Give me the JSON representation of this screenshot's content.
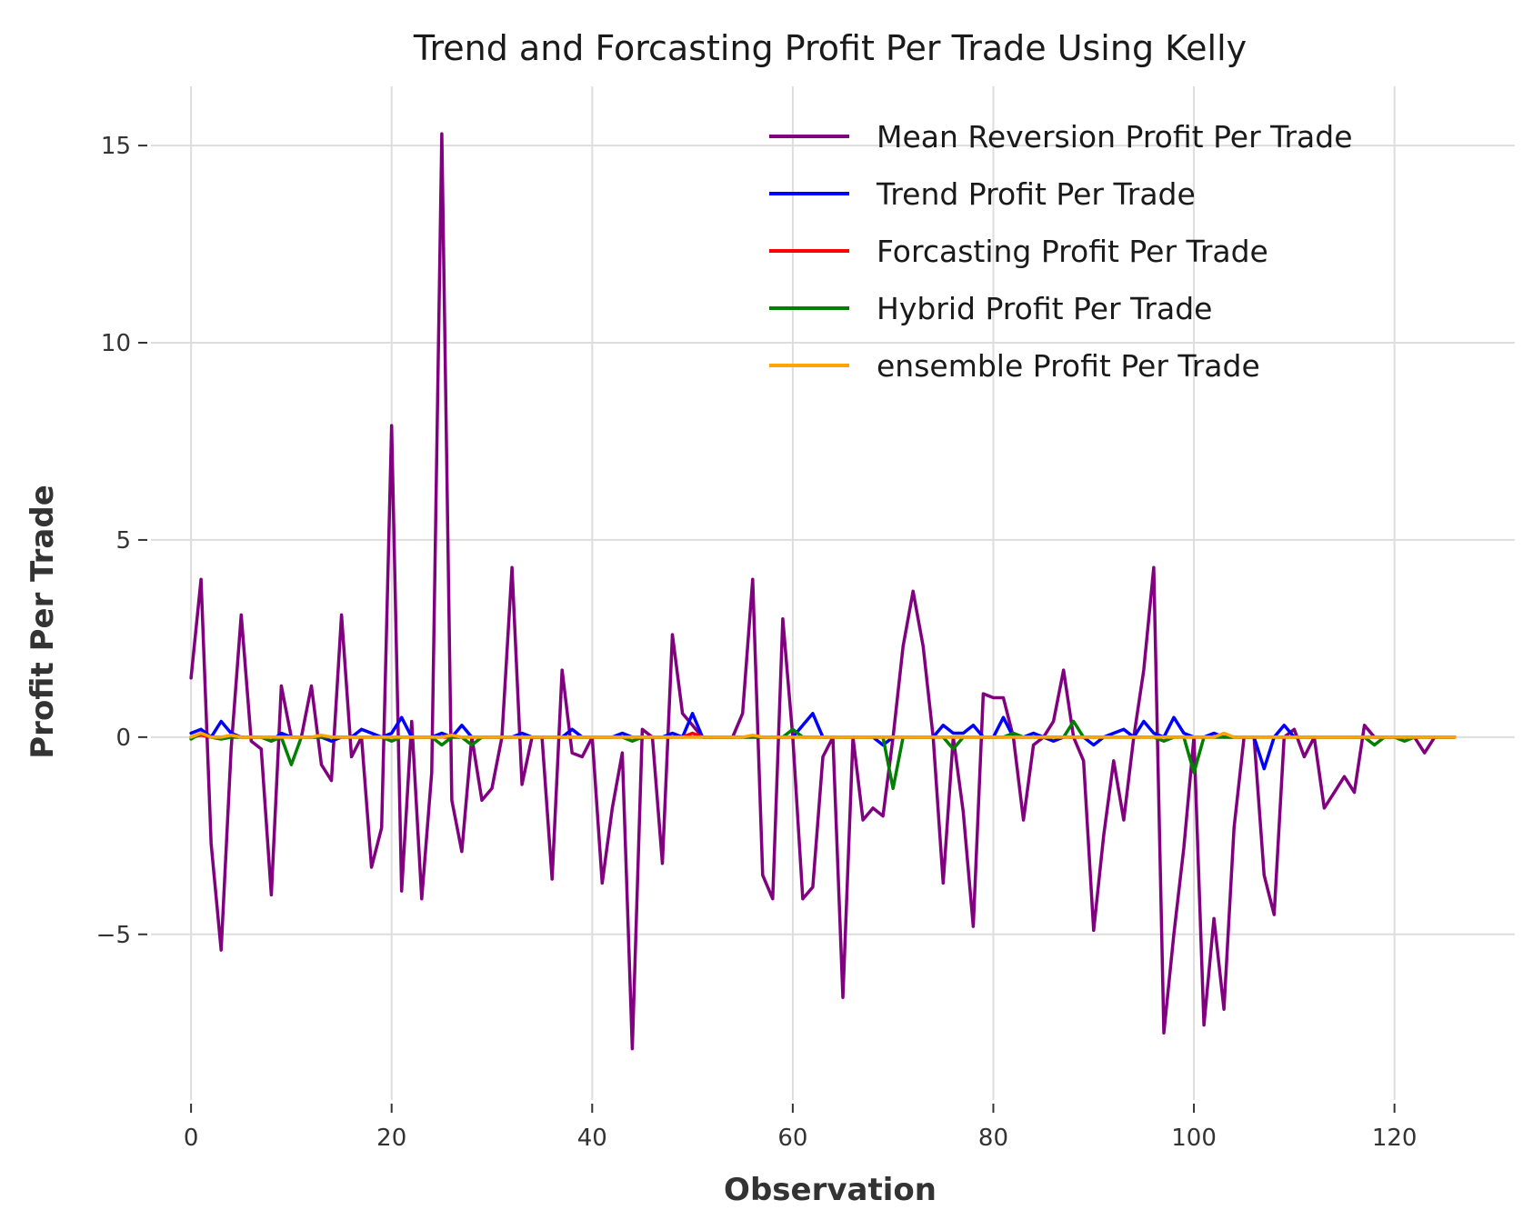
{
  "chart_data": {
    "type": "line",
    "title": "Trend and Forcasting Profit Per Trade Using Kelly",
    "xlabel": "Observation",
    "ylabel": "Profit Per Trade",
    "xlim": [
      -4,
      132
    ],
    "ylim": [
      -9.2,
      16.5
    ],
    "xticks": [
      0,
      20,
      40,
      60,
      80,
      100,
      120
    ],
    "yticks": [
      -5,
      0,
      5,
      10,
      15
    ],
    "ytick_labels": [
      "−5",
      "0",
      "5",
      "10",
      "15"
    ],
    "grid": true,
    "legend_position": "top-right",
    "series": [
      {
        "name": "Mean Reversion Profit Per Trade",
        "color": "#800080",
        "values": [
          1.5,
          4.0,
          -2.7,
          -5.4,
          -0.3,
          3.1,
          -0.1,
          -0.3,
          -4.0,
          1.3,
          0.0,
          0.0,
          1.3,
          -0.7,
          -1.1,
          3.1,
          -0.5,
          0.0,
          -3.3,
          -2.3,
          7.9,
          -3.9,
          0.4,
          -4.1,
          -0.9,
          15.3,
          -1.6,
          -2.9,
          0.0,
          -1.6,
          -1.3,
          0.0,
          4.3,
          -1.2,
          0.0,
          0.0,
          -3.6,
          1.7,
          -0.4,
          -0.5,
          0.0,
          -3.7,
          -1.8,
          -0.4,
          -7.9,
          0.2,
          0.0,
          -3.2,
          2.6,
          0.6,
          0.3,
          0.0,
          0.0,
          0.0,
          0.0,
          0.6,
          4.0,
          -3.5,
          -4.1,
          3.0,
          0.0,
          -4.1,
          -3.8,
          -0.5,
          0.0,
          -6.6,
          0.0,
          -2.1,
          -1.8,
          -2.0,
          0.0,
          2.3,
          3.7,
          2.3,
          0.0,
          -3.7,
          0.0,
          -1.9,
          -4.8,
          1.1,
          1.0,
          1.0,
          0.0,
          -2.1,
          -0.2,
          0.0,
          0.4,
          1.7,
          0.0,
          -0.6,
          -4.9,
          -2.5,
          -0.6,
          -2.1,
          0.0,
          1.7,
          4.3,
          -7.5,
          -5.0,
          -2.8,
          0.0,
          -7.3,
          -4.6,
          -6.9,
          -2.3,
          0.0,
          0.0,
          -3.5,
          -4.5,
          0.0,
          0.2,
          -0.5,
          0.0,
          -1.8,
          -1.4,
          -1.0,
          -1.4,
          0.3,
          0.0,
          0.0,
          0.0,
          0.0,
          0.0,
          -0.4,
          0.0,
          0.0,
          0.0
        ]
      },
      {
        "name": "Trend Profit Per Trade",
        "color": "#0000ff",
        "values": [
          0.1,
          0.2,
          0.0,
          0.4,
          0.1,
          0.0,
          0.0,
          0.0,
          -0.1,
          0.1,
          0.0,
          0.0,
          0.0,
          0.0,
          -0.1,
          0.0,
          0.0,
          0.2,
          0.1,
          0.0,
          0.1,
          0.5,
          0.0,
          0.0,
          0.0,
          0.1,
          0.0,
          0.3,
          0.0,
          0.0,
          0.0,
          0.0,
          0.0,
          0.1,
          0.0,
          0.0,
          0.0,
          0.0,
          0.2,
          0.0,
          0.0,
          0.0,
          0.0,
          0.1,
          0.0,
          0.0,
          0.0,
          0.0,
          0.1,
          0.0,
          0.6,
          0.0,
          0.0,
          0.0,
          0.0,
          0.0,
          0.0,
          0.0,
          0.0,
          0.0,
          0.0,
          0.3,
          0.6,
          0.0,
          0.0,
          0.0,
          0.0,
          0.0,
          0.0,
          -0.2,
          0.0,
          0.0,
          0.0,
          0.0,
          0.0,
          0.3,
          0.1,
          0.1,
          0.3,
          0.0,
          0.0,
          0.5,
          0.0,
          0.0,
          0.1,
          0.0,
          -0.1,
          0.0,
          0.0,
          0.0,
          -0.2,
          0.0,
          0.1,
          0.2,
          0.0,
          0.4,
          0.1,
          0.0,
          0.5,
          0.1,
          0.0,
          0.0,
          0.1,
          0.0,
          0.0,
          0.0,
          0.0,
          -0.8,
          0.0,
          0.3,
          0.0,
          0.0,
          0.0,
          0.0,
          0.0,
          0.0,
          0.0,
          0.0,
          0.0,
          0.0,
          0.0,
          0.0,
          0.0,
          0.0,
          0.0,
          0.0,
          0.0
        ]
      },
      {
        "name": "Forcasting Profit Per Trade",
        "color": "#ff0000",
        "values": [
          0.0,
          0.05,
          0.0,
          0.0,
          0.0,
          0.0,
          0.0,
          0.0,
          0.0,
          0.0,
          0.0,
          0.0,
          0.0,
          0.0,
          0.0,
          0.0,
          0.0,
          0.0,
          0.0,
          0.0,
          0.0,
          0.0,
          0.0,
          0.0,
          0.0,
          0.0,
          0.0,
          0.0,
          0.0,
          0.0,
          0.0,
          0.0,
          0.0,
          0.0,
          0.0,
          0.0,
          0.0,
          0.0,
          0.0,
          0.0,
          0.0,
          0.0,
          0.0,
          0.0,
          0.0,
          0.0,
          0.0,
          0.0,
          0.0,
          0.0,
          0.1,
          0.0,
          0.0,
          0.0,
          0.0,
          0.0,
          0.0,
          0.0,
          0.0,
          0.0,
          0.0,
          0.0,
          0.0,
          0.0,
          0.0,
          0.0,
          0.0,
          0.0,
          0.0,
          0.0,
          0.0,
          0.0,
          0.0,
          0.0,
          0.0,
          0.0,
          0.0,
          0.0,
          0.0,
          0.0,
          0.0,
          0.0,
          0.0,
          0.0,
          0.0,
          0.0,
          0.0,
          0.0,
          0.0,
          0.0,
          0.0,
          0.0,
          0.0,
          0.0,
          0.0,
          0.0,
          0.0,
          0.0,
          0.0,
          0.0,
          0.0,
          0.0,
          0.0,
          0.0,
          0.0,
          0.0,
          0.0,
          0.0,
          0.0,
          0.0,
          0.0,
          0.0,
          0.0,
          0.0,
          0.0,
          0.0,
          0.0,
          0.0,
          0.0,
          0.0,
          0.0,
          0.0,
          0.0,
          0.0,
          0.0,
          0.0,
          0.0
        ]
      },
      {
        "name": "Hybrid Profit Per Trade",
        "color": "#008000",
        "values": [
          -0.05,
          0.1,
          0.0,
          -0.05,
          0.0,
          0.0,
          0.0,
          0.0,
          -0.1,
          0.0,
          -0.7,
          0.0,
          0.0,
          0.0,
          0.0,
          0.0,
          0.0,
          0.0,
          0.0,
          0.0,
          -0.1,
          0.0,
          0.0,
          0.0,
          0.0,
          -0.2,
          0.0,
          0.0,
          -0.2,
          0.0,
          0.0,
          0.0,
          0.0,
          0.0,
          0.0,
          0.0,
          0.0,
          0.0,
          0.0,
          0.0,
          0.0,
          0.0,
          0.0,
          0.0,
          -0.1,
          0.0,
          0.0,
          0.0,
          0.0,
          0.0,
          0.0,
          0.0,
          0.0,
          0.0,
          0.0,
          0.0,
          0.0,
          0.0,
          0.0,
          0.0,
          0.2,
          0.0,
          0.0,
          0.0,
          0.0,
          0.0,
          0.0,
          0.0,
          0.0,
          0.0,
          -1.3,
          0.0,
          0.0,
          0.0,
          0.0,
          0.0,
          -0.3,
          0.0,
          0.0,
          0.0,
          0.0,
          0.0,
          0.1,
          0.0,
          0.0,
          0.0,
          0.0,
          0.0,
          0.4,
          0.0,
          0.0,
          0.0,
          0.0,
          0.0,
          0.0,
          0.0,
          0.0,
          -0.1,
          0.0,
          0.0,
          -0.9,
          0.0,
          0.0,
          0.0,
          0.0,
          0.0,
          0.0,
          0.0,
          0.0,
          0.0,
          0.0,
          0.0,
          0.0,
          0.0,
          0.0,
          0.0,
          0.0,
          0.0,
          -0.2,
          0.0,
          0.0,
          -0.1,
          0.0,
          0.0,
          0.0,
          0.0,
          0.0
        ]
      },
      {
        "name": "ensemble Profit Per Trade",
        "color": "#ffa500",
        "values": [
          0.0,
          0.1,
          0.0,
          0.0,
          0.05,
          0.0,
          0.0,
          0.0,
          0.0,
          0.0,
          0.0,
          0.0,
          0.0,
          0.05,
          0.0,
          0.0,
          0.0,
          0.0,
          0.0,
          0.0,
          0.0,
          0.0,
          0.0,
          0.0,
          0.0,
          0.0,
          0.05,
          0.0,
          0.0,
          0.0,
          0.0,
          0.0,
          0.0,
          0.0,
          0.0,
          0.0,
          0.0,
          0.0,
          0.0,
          0.0,
          0.0,
          0.0,
          0.0,
          0.0,
          0.0,
          0.0,
          0.0,
          0.0,
          0.0,
          0.0,
          0.0,
          0.0,
          0.0,
          0.0,
          0.0,
          0.0,
          0.05,
          0.0,
          0.0,
          0.0,
          0.0,
          0.0,
          0.0,
          0.0,
          0.0,
          0.0,
          0.0,
          0.0,
          0.0,
          0.0,
          0.0,
          0.0,
          0.0,
          0.0,
          0.0,
          0.0,
          0.0,
          0.0,
          0.0,
          0.0,
          0.0,
          0.0,
          0.0,
          0.0,
          0.0,
          0.0,
          0.0,
          0.0,
          0.0,
          0.0,
          0.0,
          0.0,
          0.0,
          0.0,
          0.0,
          0.0,
          0.0,
          0.0,
          0.0,
          0.0,
          0.0,
          0.0,
          0.0,
          0.1,
          0.0,
          0.0,
          0.0,
          0.0,
          0.0,
          0.0,
          0.0,
          0.0,
          0.0,
          0.0,
          0.0,
          0.0,
          0.0,
          0.0,
          0.0,
          0.0,
          0.0,
          0.0,
          0.0,
          0.0,
          0.0,
          0.0,
          0.0
        ]
      }
    ]
  }
}
